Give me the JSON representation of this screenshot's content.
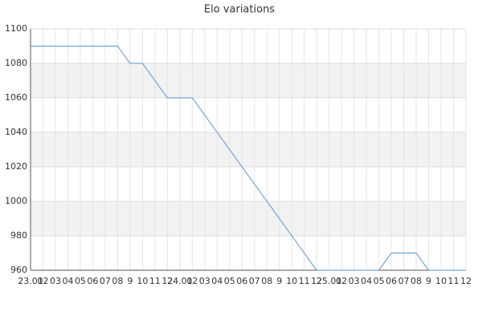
{
  "chart_data": {
    "type": "line",
    "title": "Elo variations",
    "categories": [
      "23.01",
      "02",
      "03",
      "04",
      "05",
      "06",
      "07",
      "08",
      "9",
      "10",
      "11",
      "12",
      "24.01",
      "02",
      "03",
      "04",
      "05",
      "06",
      "07",
      "08",
      "9",
      "10",
      "11",
      "12",
      "25.01",
      "02",
      "03",
      "04",
      "05",
      "06",
      "07",
      "08",
      "9",
      "10",
      "11",
      "12"
    ],
    "series": [
      {
        "name": "Elo",
        "color": "#5b8fd6",
        "values": [
          1090,
          1090,
          1090,
          1090,
          1090,
          1090,
          1090,
          1090,
          1080,
          1080,
          1070,
          1060,
          1060,
          1060,
          1050,
          1040,
          1030,
          1020,
          1010,
          1000,
          990,
          980,
          970,
          960,
          960,
          960,
          960,
          960,
          960,
          970,
          970,
          970,
          960,
          960,
          960,
          960
        ]
      }
    ],
    "ylim": [
      960,
      1100
    ],
    "yticks": [
      960,
      980,
      1000,
      1020,
      1040,
      1060,
      1080,
      1100
    ],
    "grid": true,
    "legend": false
  }
}
